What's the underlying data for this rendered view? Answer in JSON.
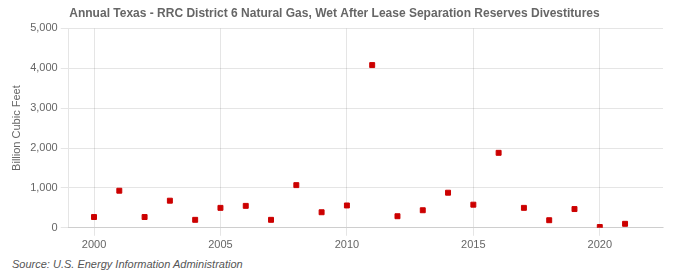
{
  "chart_data": {
    "type": "scatter",
    "title": "Annual Texas - RRC District 6 Natural Gas, Wet After Lease Separation Reserves Divestitures",
    "y_label": "Billion Cubic Feet",
    "source": "Source: U.S. Energy Information Administration",
    "x": [
      2000,
      2001,
      2002,
      2003,
      2004,
      2005,
      2006,
      2007,
      2008,
      2009,
      2010,
      2011,
      2012,
      2013,
      2014,
      2015,
      2016,
      2017,
      2018,
      2019,
      2020,
      2021
    ],
    "values": [
      270,
      930,
      270,
      680,
      200,
      500,
      550,
      200,
      1070,
      390,
      560,
      4080,
      290,
      440,
      880,
      580,
      1880,
      500,
      190,
      470,
      20,
      100
    ],
    "color": "#cc0000",
    "marker": "square",
    "xlim": [
      1999,
      2022.5
    ],
    "xticks": [
      2000,
      2005,
      2010,
      2015,
      2020
    ],
    "ylim": [
      0,
      5000
    ],
    "yticks": [
      0,
      {
        "value": 1000,
        "label": "1,000"
      },
      {
        "value": 2000,
        "label": "2,000"
      },
      {
        "value": 3000,
        "label": "3,000"
      },
      {
        "value": 4000,
        "label": "4,000"
      },
      {
        "value": 5000,
        "label": "5,000"
      }
    ],
    "grid": true
  }
}
